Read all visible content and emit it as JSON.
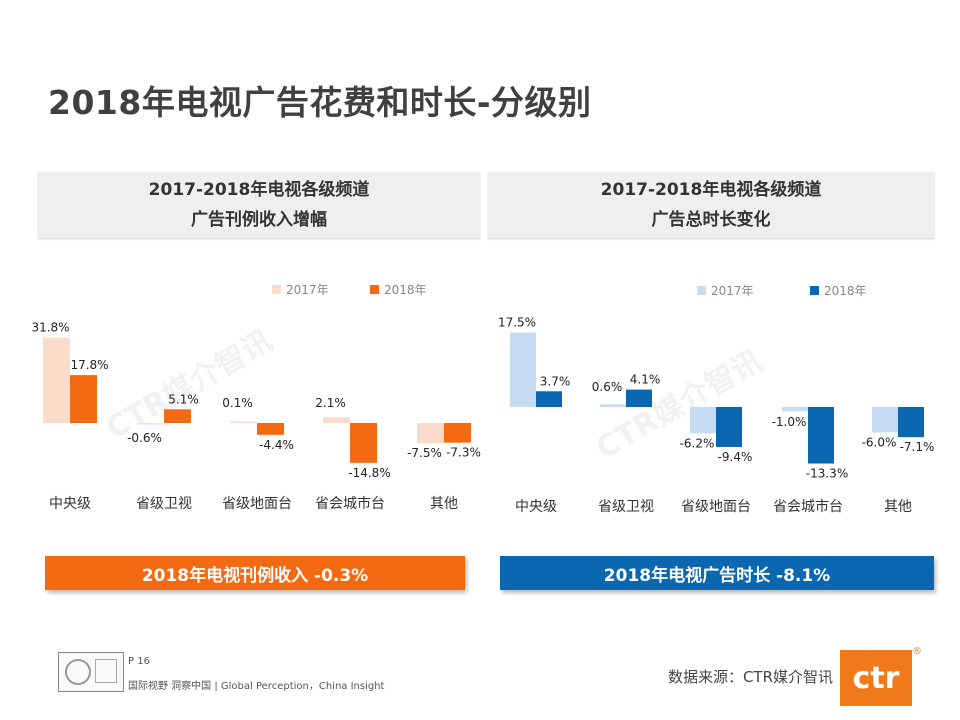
{
  "page": {
    "title": "2018年电视广告花费和时长-分级别",
    "page_number": "P 16",
    "tagline": "国际视野 洞察中国 | Global Perception，China Insight",
    "source": "数据来源：CTR媒介智讯",
    "logo_text": "ctr",
    "logo_reg": "®",
    "watermark_text": "CTR媒介智讯"
  },
  "left_panel": {
    "header_line1": "2017-2018年电视各级频道",
    "header_line2": "广告刊例收入增幅",
    "summary": "2018年电视刊例收入 -0.3%",
    "color": "#f36a12"
  },
  "right_panel": {
    "header_line1": "2017-2018年电视各级频道",
    "header_line2": "广告总时长变化",
    "summary": "2018年电视广告时长 -8.1%",
    "color": "#0c67b1"
  },
  "chart_data": [
    {
      "type": "bar",
      "title": "2017-2018年电视各级频道广告刊例收入增幅",
      "categories": [
        "中央级",
        "省级卫视",
        "省级地面台",
        "省会城市台",
        "其他"
      ],
      "series": [
        {
          "name": "2017年",
          "color": "#fbdccb",
          "values": [
            31.8,
            -0.6,
            0.1,
            2.1,
            -7.5
          ],
          "labels": [
            "31.8%",
            "-0.6%",
            "0.1%",
            "2.1%",
            "-7.5%"
          ]
        },
        {
          "name": "2018年",
          "color": "#f36a12",
          "values": [
            17.8,
            5.1,
            -4.4,
            -14.8,
            -7.3
          ],
          "labels": [
            "17.8%",
            "5.1%",
            "-4.4%",
            "-14.8%",
            "-7.3%"
          ]
        }
      ],
      "ylim": [
        -15,
        32
      ],
      "unit": "%",
      "legend": "top-right"
    },
    {
      "type": "bar",
      "title": "2017-2018年电视各级频道广告总时长变化",
      "categories": [
        "中央级",
        "省级卫视",
        "省级地面台",
        "省会城市台",
        "其他"
      ],
      "series": [
        {
          "name": "2017年",
          "color": "#c5dcf2",
          "values": [
            17.5,
            0.6,
            -6.2,
            -1.0,
            -6.0
          ],
          "labels": [
            "17.5%",
            "0.6%",
            "-6.2%",
            "-1.0%",
            "-6.0%"
          ]
        },
        {
          "name": "2018年",
          "color": "#0c67b1",
          "values": [
            3.7,
            4.1,
            -9.4,
            -13.3,
            -7.1
          ],
          "labels": [
            "3.7%",
            "4.1%",
            "-9.4%",
            "-13.3%",
            "-7.1%"
          ]
        }
      ],
      "ylim": [
        -14,
        18
      ],
      "unit": "%",
      "legend": "top-right"
    }
  ]
}
